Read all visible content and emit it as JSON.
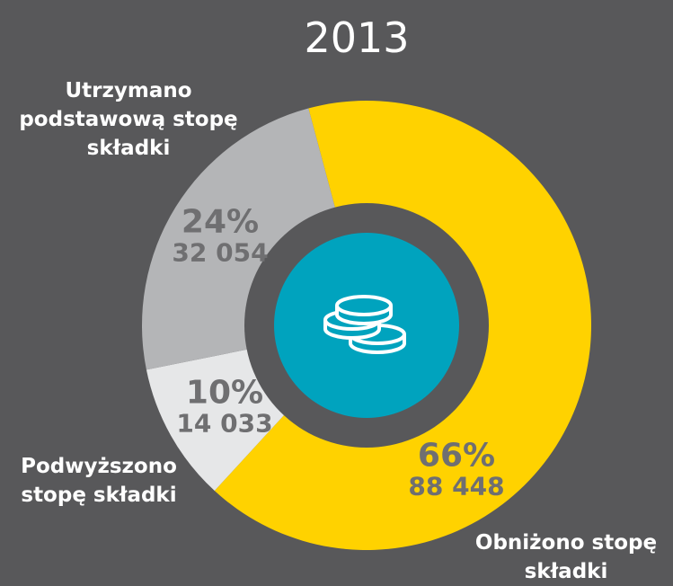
{
  "chart_data": {
    "type": "donut",
    "title": "2013",
    "categories": [
      "Obniżono stopę składki",
      "Podwyższono stopę składki",
      "Utrzymano podstawową stopę składki"
    ],
    "values": [
      66,
      10,
      24
    ],
    "value_labels": [
      "66%",
      "10%",
      "24%"
    ],
    "counts": [
      88448,
      14033,
      32054
    ],
    "count_labels": [
      "88 448",
      "14 033",
      "32 054"
    ],
    "colors": [
      "#ffd200",
      "#e6e7e8",
      "#b4b5b7"
    ]
  }
}
